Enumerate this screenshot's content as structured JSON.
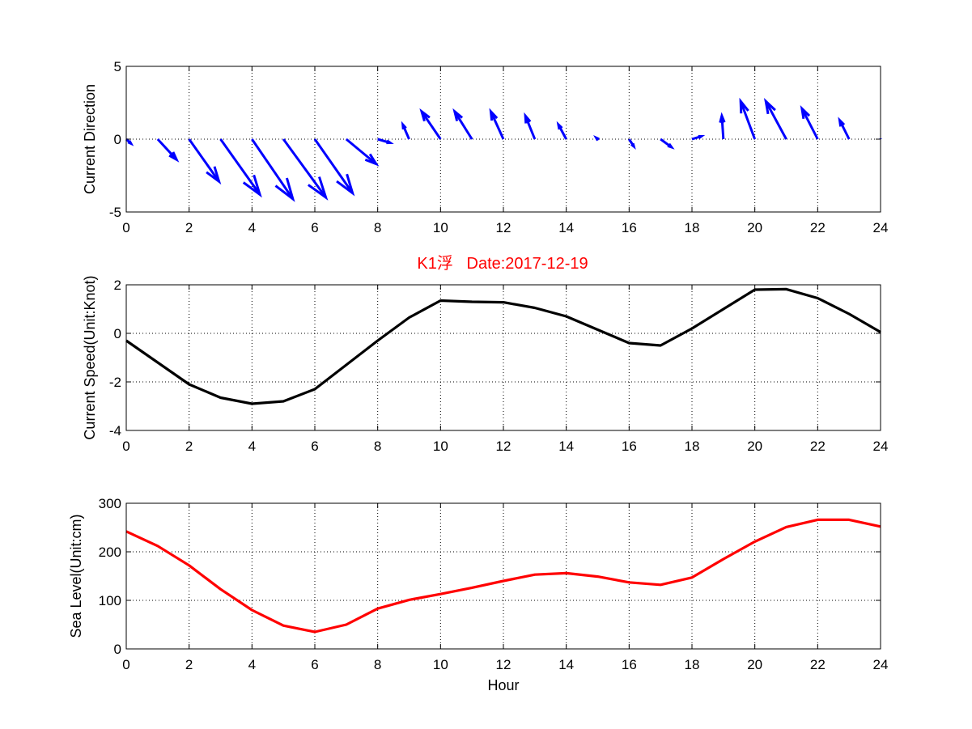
{
  "figure": {
    "title": "K1浮   Date:2017-12-19",
    "title_color": "#ff0000",
    "background": "#ffffff"
  },
  "chart_data": [
    {
      "type": "quiver",
      "ylabel": "Current Direction",
      "xlabel": "",
      "xlim": [
        0,
        24
      ],
      "ylim": [
        -5,
        5
      ],
      "xticks": [
        "0",
        "2",
        "4",
        "6",
        "8",
        "10",
        "12",
        "14",
        "16",
        "18",
        "20",
        "22",
        "24"
      ],
      "yticks": [
        "-5",
        "0",
        "5"
      ],
      "grid": true,
      "color": "#0000ff",
      "x": [
        0,
        1,
        2,
        3,
        4,
        5,
        6,
        7,
        8,
        9,
        10,
        11,
        12,
        13,
        14,
        15,
        16,
        17,
        18,
        19,
        20,
        21,
        22,
        23,
        24
      ],
      "u": [
        0.15,
        0.6,
        0.95,
        1.25,
        1.3,
        1.35,
        1.2,
        0.95,
        0.4,
        -0.2,
        -0.6,
        -0.55,
        -0.4,
        -0.3,
        -0.25,
        -0.05,
        0.15,
        0.35,
        0.3,
        -0.05,
        -0.45,
        -0.65,
        -0.5,
        -0.3,
        0.0
      ],
      "v": [
        -0.3,
        -1.4,
        -2.9,
        -3.8,
        -4.1,
        -4.0,
        -3.7,
        -1.7,
        -0.25,
        1.0,
        1.9,
        1.9,
        1.9,
        1.6,
        1.0,
        0.1,
        -0.5,
        -0.55,
        0.2,
        1.6,
        2.6,
        2.6,
        2.1,
        1.3,
        0.05
      ]
    },
    {
      "type": "line",
      "ylabel": "Current Speed(Unit:Knot)",
      "xlabel": "",
      "xlim": [
        0,
        24
      ],
      "ylim": [
        -4,
        2
      ],
      "xticks": [
        "0",
        "2",
        "4",
        "6",
        "8",
        "10",
        "12",
        "14",
        "16",
        "18",
        "20",
        "22",
        "24"
      ],
      "yticks": [
        "-4",
        "-2",
        "0",
        "2"
      ],
      "grid": true,
      "series": [
        {
          "color": "#000000",
          "x": [
            0,
            1,
            2,
            3,
            4,
            5,
            6,
            7,
            8,
            9,
            10,
            11,
            12,
            13,
            14,
            15,
            16,
            17,
            18,
            19,
            20,
            21,
            22,
            23,
            24
          ],
          "y": [
            -0.3,
            -1.2,
            -2.1,
            -2.65,
            -2.9,
            -2.8,
            -2.3,
            -1.3,
            -0.3,
            0.65,
            1.35,
            1.3,
            1.28,
            1.05,
            0.7,
            0.15,
            -0.4,
            -0.5,
            0.2,
            1.0,
            1.8,
            1.82,
            1.45,
            0.8,
            0.05
          ]
        }
      ]
    },
    {
      "type": "line",
      "ylabel": "Sea Level(Unit:cm)",
      "xlabel": "Hour",
      "xlim": [
        0,
        24
      ],
      "ylim": [
        0,
        300
      ],
      "xticks": [
        "0",
        "2",
        "4",
        "6",
        "8",
        "10",
        "12",
        "14",
        "16",
        "18",
        "20",
        "22",
        "24"
      ],
      "yticks": [
        "0",
        "100",
        "200",
        "300"
      ],
      "grid": true,
      "series": [
        {
          "color": "#ff0000",
          "x": [
            0,
            1,
            2,
            3,
            4,
            5,
            6,
            7,
            8,
            9,
            10,
            11,
            12,
            13,
            14,
            15,
            16,
            17,
            18,
            19,
            20,
            21,
            22,
            23,
            24
          ],
          "y": [
            242,
            212,
            172,
            123,
            80,
            48,
            35,
            50,
            83,
            101,
            113,
            126,
            140,
            153,
            156,
            149,
            137,
            132,
            147,
            185,
            221,
            251,
            266,
            266,
            252
          ]
        }
      ]
    }
  ]
}
